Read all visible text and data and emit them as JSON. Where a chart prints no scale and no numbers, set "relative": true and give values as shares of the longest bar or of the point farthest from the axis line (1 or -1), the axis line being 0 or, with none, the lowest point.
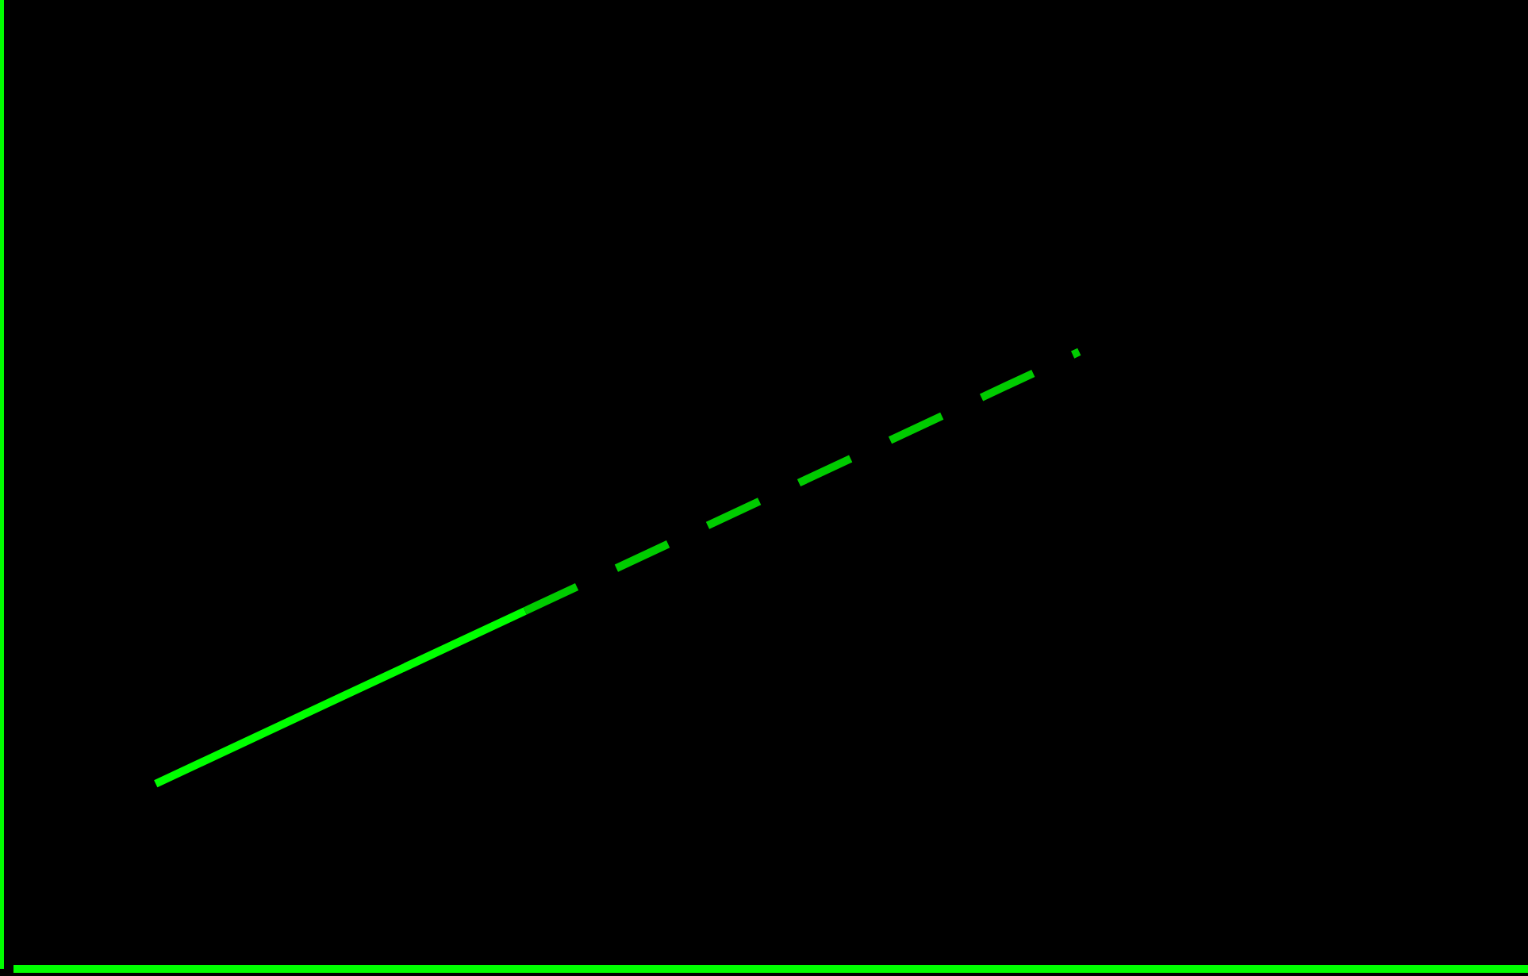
{
  "chart_data": {
    "type": "line",
    "relative": true,
    "categories": [
      null,
      null,
      null,
      null,
      null,
      null
    ],
    "series": [
      {
        "color": "#00ff00",
        "line_style": "solid",
        "values": [
          0.3,
          0.44,
          0.58,
          null,
          null,
          null
        ]
      },
      {
        "color": "#00cc00",
        "line_style": "dashed",
        "values": [
          null,
          null,
          0.58,
          0.72,
          0.86,
          1.0
        ]
      }
    ],
    "grid": false,
    "legend": false,
    "marker": "none"
  }
}
